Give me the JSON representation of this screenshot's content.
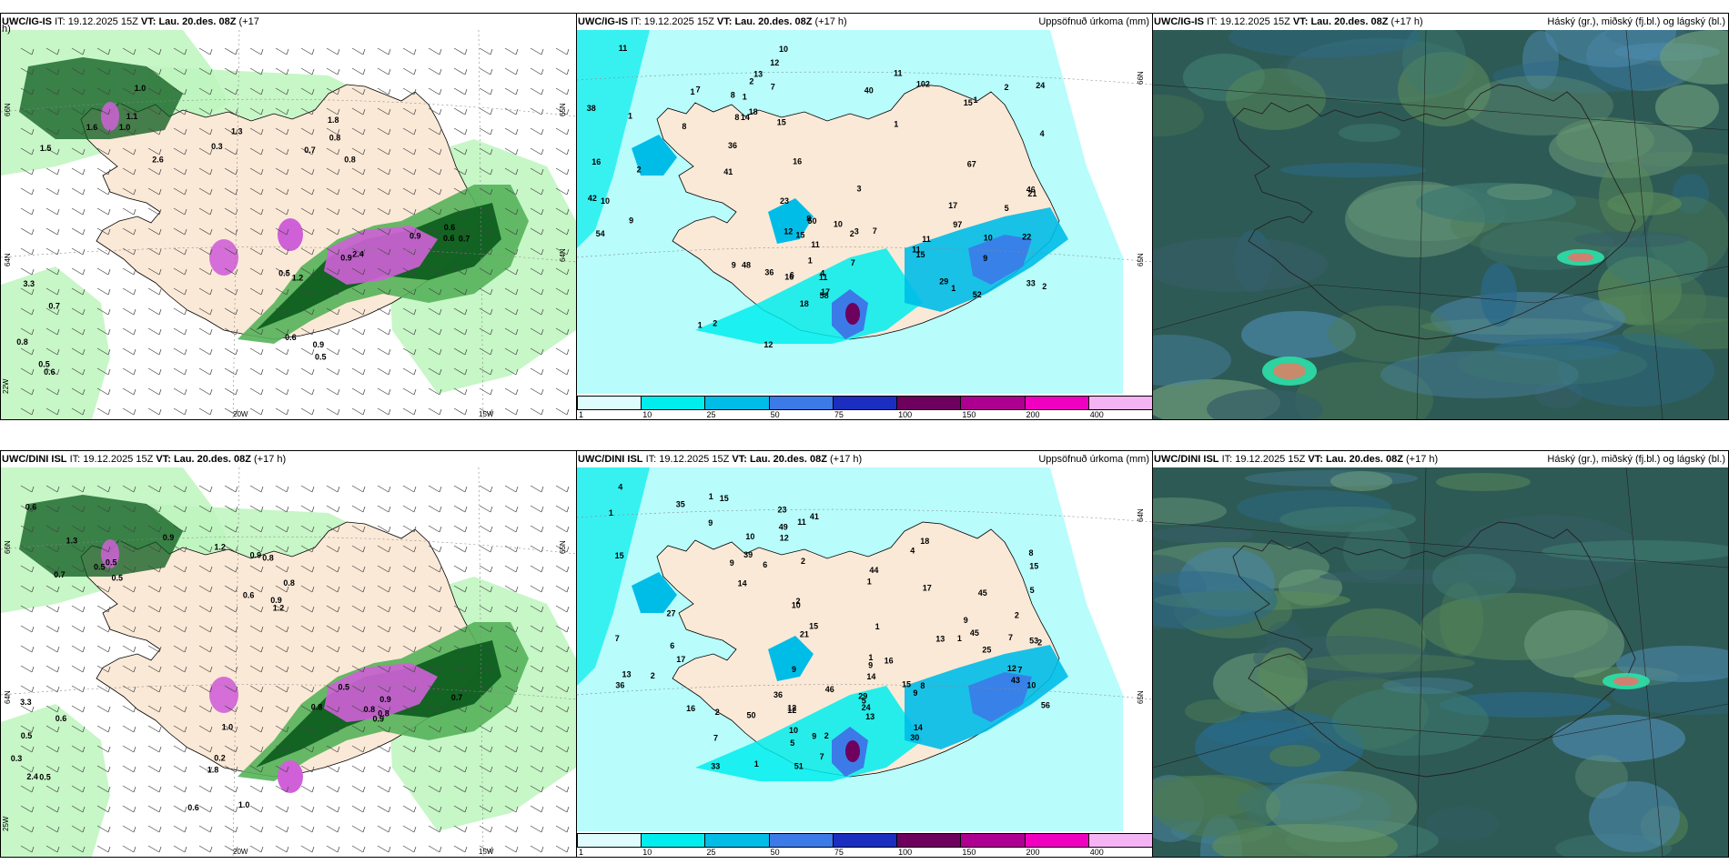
{
  "colors": {
    "land": "#fbe9d7",
    "sea_cyan": "#b8fcfc",
    "green_light": "#bdf5bd",
    "green_mid": "#55b25a",
    "green_dark": "#0a5a1c",
    "magenta": "#d060d8",
    "cloud_dark": "#2e5a55",
    "cloud_mid": "#3e7a70",
    "cloud_blue": "#2a6a8a"
  },
  "rows": [
    {
      "panels": [
        {
          "type": "wind",
          "model": "UWC/IG-IS",
          "it_label": "IT:",
          "it_value": "19.12.2025 15Z",
          "vt_label": "VT:",
          "vt_value": "Lau. 20.des. 08Z",
          "lead": "(+17",
          "lead2": "h)",
          "right": "",
          "axis": [
            "66N",
            "64N",
            "22W",
            "20W",
            "15W",
            "65N",
            "64N"
          ],
          "labels": [
            "1.0",
            "0.8",
            "0.7",
            "0.9",
            "0.5",
            "1.0",
            "0.8",
            "0.9",
            "0.5",
            "0.6",
            "1.1",
            "0.7",
            "0.9",
            "0.6",
            "0.8",
            "2.6",
            "1.8",
            "2.4",
            "1.2",
            "3.3",
            "1.6",
            "0.3",
            "0.6",
            "0.5",
            "0.7",
            "1.5",
            "1.3",
            "0.6"
          ]
        },
        {
          "type": "precip",
          "model": "UWC/IG-IS",
          "it_label": "IT:",
          "it_value": "19.12.2025 15Z",
          "vt_label": "VT:",
          "vt_value": "Lau. 20.des. 08Z",
          "lead": "(+17 h)",
          "right": "Uppsöfnuð úrkoma (mm)",
          "axis": [
            "65N",
            "66N"
          ],
          "labels": [
            "11",
            "12",
            "7",
            "7",
            "9",
            "14",
            "15",
            "16",
            "16",
            "13",
            "15",
            "18",
            "17",
            "15",
            "5",
            "12",
            "9",
            "10",
            "10",
            "11",
            "11",
            "8",
            "4",
            "17",
            "42",
            "7",
            "12",
            "11",
            "33",
            "36",
            "46",
            "36",
            "10",
            "8",
            "4",
            "29",
            "22",
            "16",
            "24",
            "48",
            "54",
            "41",
            "58",
            "50",
            "52",
            "40",
            "21",
            "6",
            "38",
            "18",
            "23",
            "15",
            "10",
            "11",
            "2",
            "1",
            "1",
            "1",
            "3",
            "2",
            "2",
            "1",
            "1",
            "2",
            "2",
            "1",
            "3",
            "1",
            "97",
            "102",
            "67",
            "9",
            "8",
            "7",
            "8",
            "11",
            "1",
            "2"
          ]
        },
        {
          "type": "cloud",
          "model": "UWC/IG-IS",
          "it_label": "IT:",
          "it_value": "19.12.2025 15Z",
          "vt_label": "VT:",
          "vt_value": "Lau. 20.des. 08Z",
          "lead": "(+17 h)",
          "right": "Háský (gr.), miðský (fj.bl.) og lágský (bl.)",
          "axis": [],
          "labels": []
        }
      ]
    },
    {
      "panels": [
        {
          "type": "wind",
          "model": "UWC/DINI ISL",
          "it_label": "IT:",
          "it_value": "19.12.2025 15Z",
          "vt_label": "VT:",
          "vt_value": "Lau. 20.des. 08Z",
          "lead": "(+17 h)",
          "lead2": "",
          "right": "",
          "axis": [
            "66N",
            "64N",
            "25W",
            "20W",
            "15W",
            "65N"
          ],
          "labels": [
            "0.6",
            "1.2",
            "0.5",
            "0.8",
            "0.6",
            "0.5",
            "0.8",
            "0.9",
            "0.6",
            "0.5",
            "0.7",
            "0.8",
            "0.9",
            "1.8",
            "2.4",
            "1.3",
            "0.9",
            "0.8",
            "1.0",
            "0.5",
            "0.9",
            "1.2",
            "0.8",
            "0.2",
            "0.3",
            "0.5",
            "0.6",
            "0.7",
            "1.0",
            "3.3",
            "0.5",
            "0.9"
          ]
        },
        {
          "type": "precip",
          "model": "UWC/DINI ISL",
          "it_label": "IT:",
          "it_value": "19.12.2025 15Z",
          "vt_label": "VT:",
          "vt_value": "Lau. 20.des. 08Z",
          "lead": "(+17 h)",
          "right": "Uppsöfnuð úrkoma (mm)",
          "axis": [
            "65N",
            "64N"
          ],
          "labels": [
            "6",
            "11",
            "13",
            "14",
            "14",
            "23",
            "15",
            "33",
            "35",
            "9",
            "9",
            "9",
            "10",
            "10",
            "9",
            "16",
            "17",
            "15",
            "12",
            "8",
            "9",
            "9",
            "7",
            "10",
            "13",
            "14",
            "15",
            "16",
            "12",
            "17",
            "45",
            "51",
            "36",
            "39",
            "29",
            "30",
            "43",
            "41",
            "53",
            "7",
            "27",
            "12",
            "21",
            "46",
            "56",
            "44",
            "45",
            "36",
            "15",
            "49",
            "50",
            "24",
            "25",
            "18",
            "2",
            "5",
            "4",
            "1",
            "2",
            "1",
            "1",
            "1",
            "2",
            "1",
            "1",
            "2",
            "2",
            "5",
            "7",
            "10",
            "8",
            "9",
            "7",
            "6",
            "12",
            "15",
            "13",
            "4",
            "5",
            "7",
            "2",
            "2",
            "1"
          ]
        },
        {
          "type": "cloud",
          "model": "UWC/DINI ISL",
          "it_label": "IT:",
          "it_value": "19.12.2025 15Z",
          "vt_label": "VT:",
          "vt_value": "Lau. 20.des. 08Z",
          "lead": "(+17 h)",
          "right": "Háský (gr.), miðský (fj.bl.) og lágský (bl.)",
          "axis": [],
          "labels": []
        }
      ]
    }
  ],
  "colorbar": {
    "ticks": [
      "1",
      "10",
      "25",
      "50",
      "75",
      "100",
      "150",
      "200",
      "400"
    ],
    "colors": [
      "#dffcfc",
      "#00eded",
      "#00bde8",
      "#3c7ae8",
      "#1c2ec0",
      "#6e005e",
      "#ae0090",
      "#f000c0",
      "#f4b4f4"
    ]
  }
}
